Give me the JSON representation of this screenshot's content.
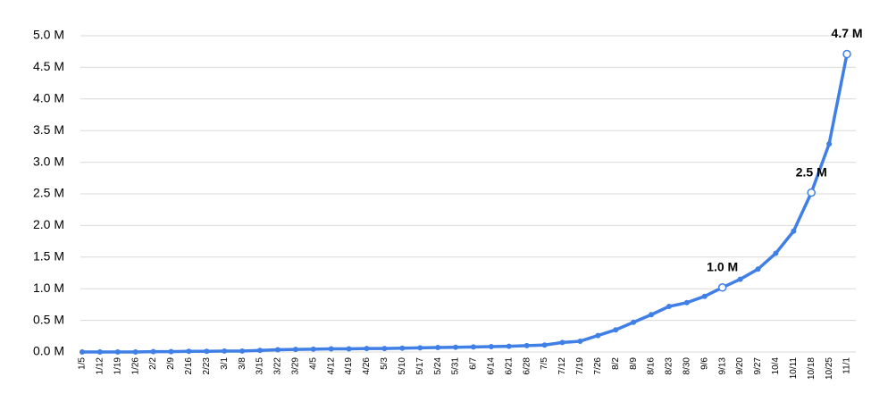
{
  "chart_data": {
    "type": "line",
    "categories": [
      "1/5",
      "1/12",
      "1/19",
      "1/26",
      "2/2",
      "2/9",
      "2/16",
      "2/23",
      "3/1",
      "3/8",
      "3/15",
      "3/22",
      "3/29",
      "4/5",
      "4/12",
      "4/19",
      "4/26",
      "5/3",
      "5/10",
      "5/17",
      "5/24",
      "5/31",
      "6/7",
      "6/14",
      "6/21",
      "6/28",
      "7/5",
      "7/12",
      "7/19",
      "7/26",
      "8/2",
      "8/9",
      "8/16",
      "8/23",
      "8/30",
      "9/6",
      "9/13",
      "9/20",
      "9/27",
      "10/4",
      "10/11",
      "10/18",
      "10/25",
      "11/1"
    ],
    "values": [
      0,
      0,
      0,
      0,
      0.005,
      0.005,
      0.01,
      0.01,
      0.015,
      0.015,
      0.025,
      0.035,
      0.04,
      0.045,
      0.05,
      0.05,
      0.055,
      0.055,
      0.06,
      0.065,
      0.07,
      0.075,
      0.08,
      0.085,
      0.09,
      0.1,
      0.11,
      0.15,
      0.17,
      0.26,
      0.35,
      0.47,
      0.59,
      0.72,
      0.78,
      0.88,
      1.02,
      1.15,
      1.31,
      1.56,
      1.91,
      2.52,
      3.29,
      4.71
    ],
    "value_labels": [
      null,
      null,
      null,
      null,
      null,
      null,
      null,
      null,
      null,
      null,
      null,
      null,
      null,
      null,
      null,
      null,
      null,
      null,
      null,
      null,
      null,
      null,
      null,
      null,
      null,
      null,
      null,
      null,
      null,
      null,
      null,
      null,
      null,
      null,
      null,
      null,
      "1.0 M",
      null,
      null,
      null,
      null,
      "2.5 M",
      null,
      "4.7 M"
    ],
    "color": "#3f7fe6",
    "ylim": [
      0,
      5
    ],
    "yticks": [
      {
        "value": 0,
        "label": "0.0 M"
      },
      {
        "value": 0.5,
        "label": "0.5 M"
      },
      {
        "value": 1,
        "label": "1.0 M"
      },
      {
        "value": 1.5,
        "label": "1.5 M"
      },
      {
        "value": 2,
        "label": "2.0 M"
      },
      {
        "value": 2.5,
        "label": "2.5 M"
      },
      {
        "value": 3,
        "label": "3.0 M"
      },
      {
        "value": 3.5,
        "label": "3.5 M"
      },
      {
        "value": 4,
        "label": "4.0 M"
      },
      {
        "value": 4.5,
        "label": "4.5 M"
      },
      {
        "value": 5,
        "label": "5.0 M"
      }
    ],
    "grid": true
  }
}
